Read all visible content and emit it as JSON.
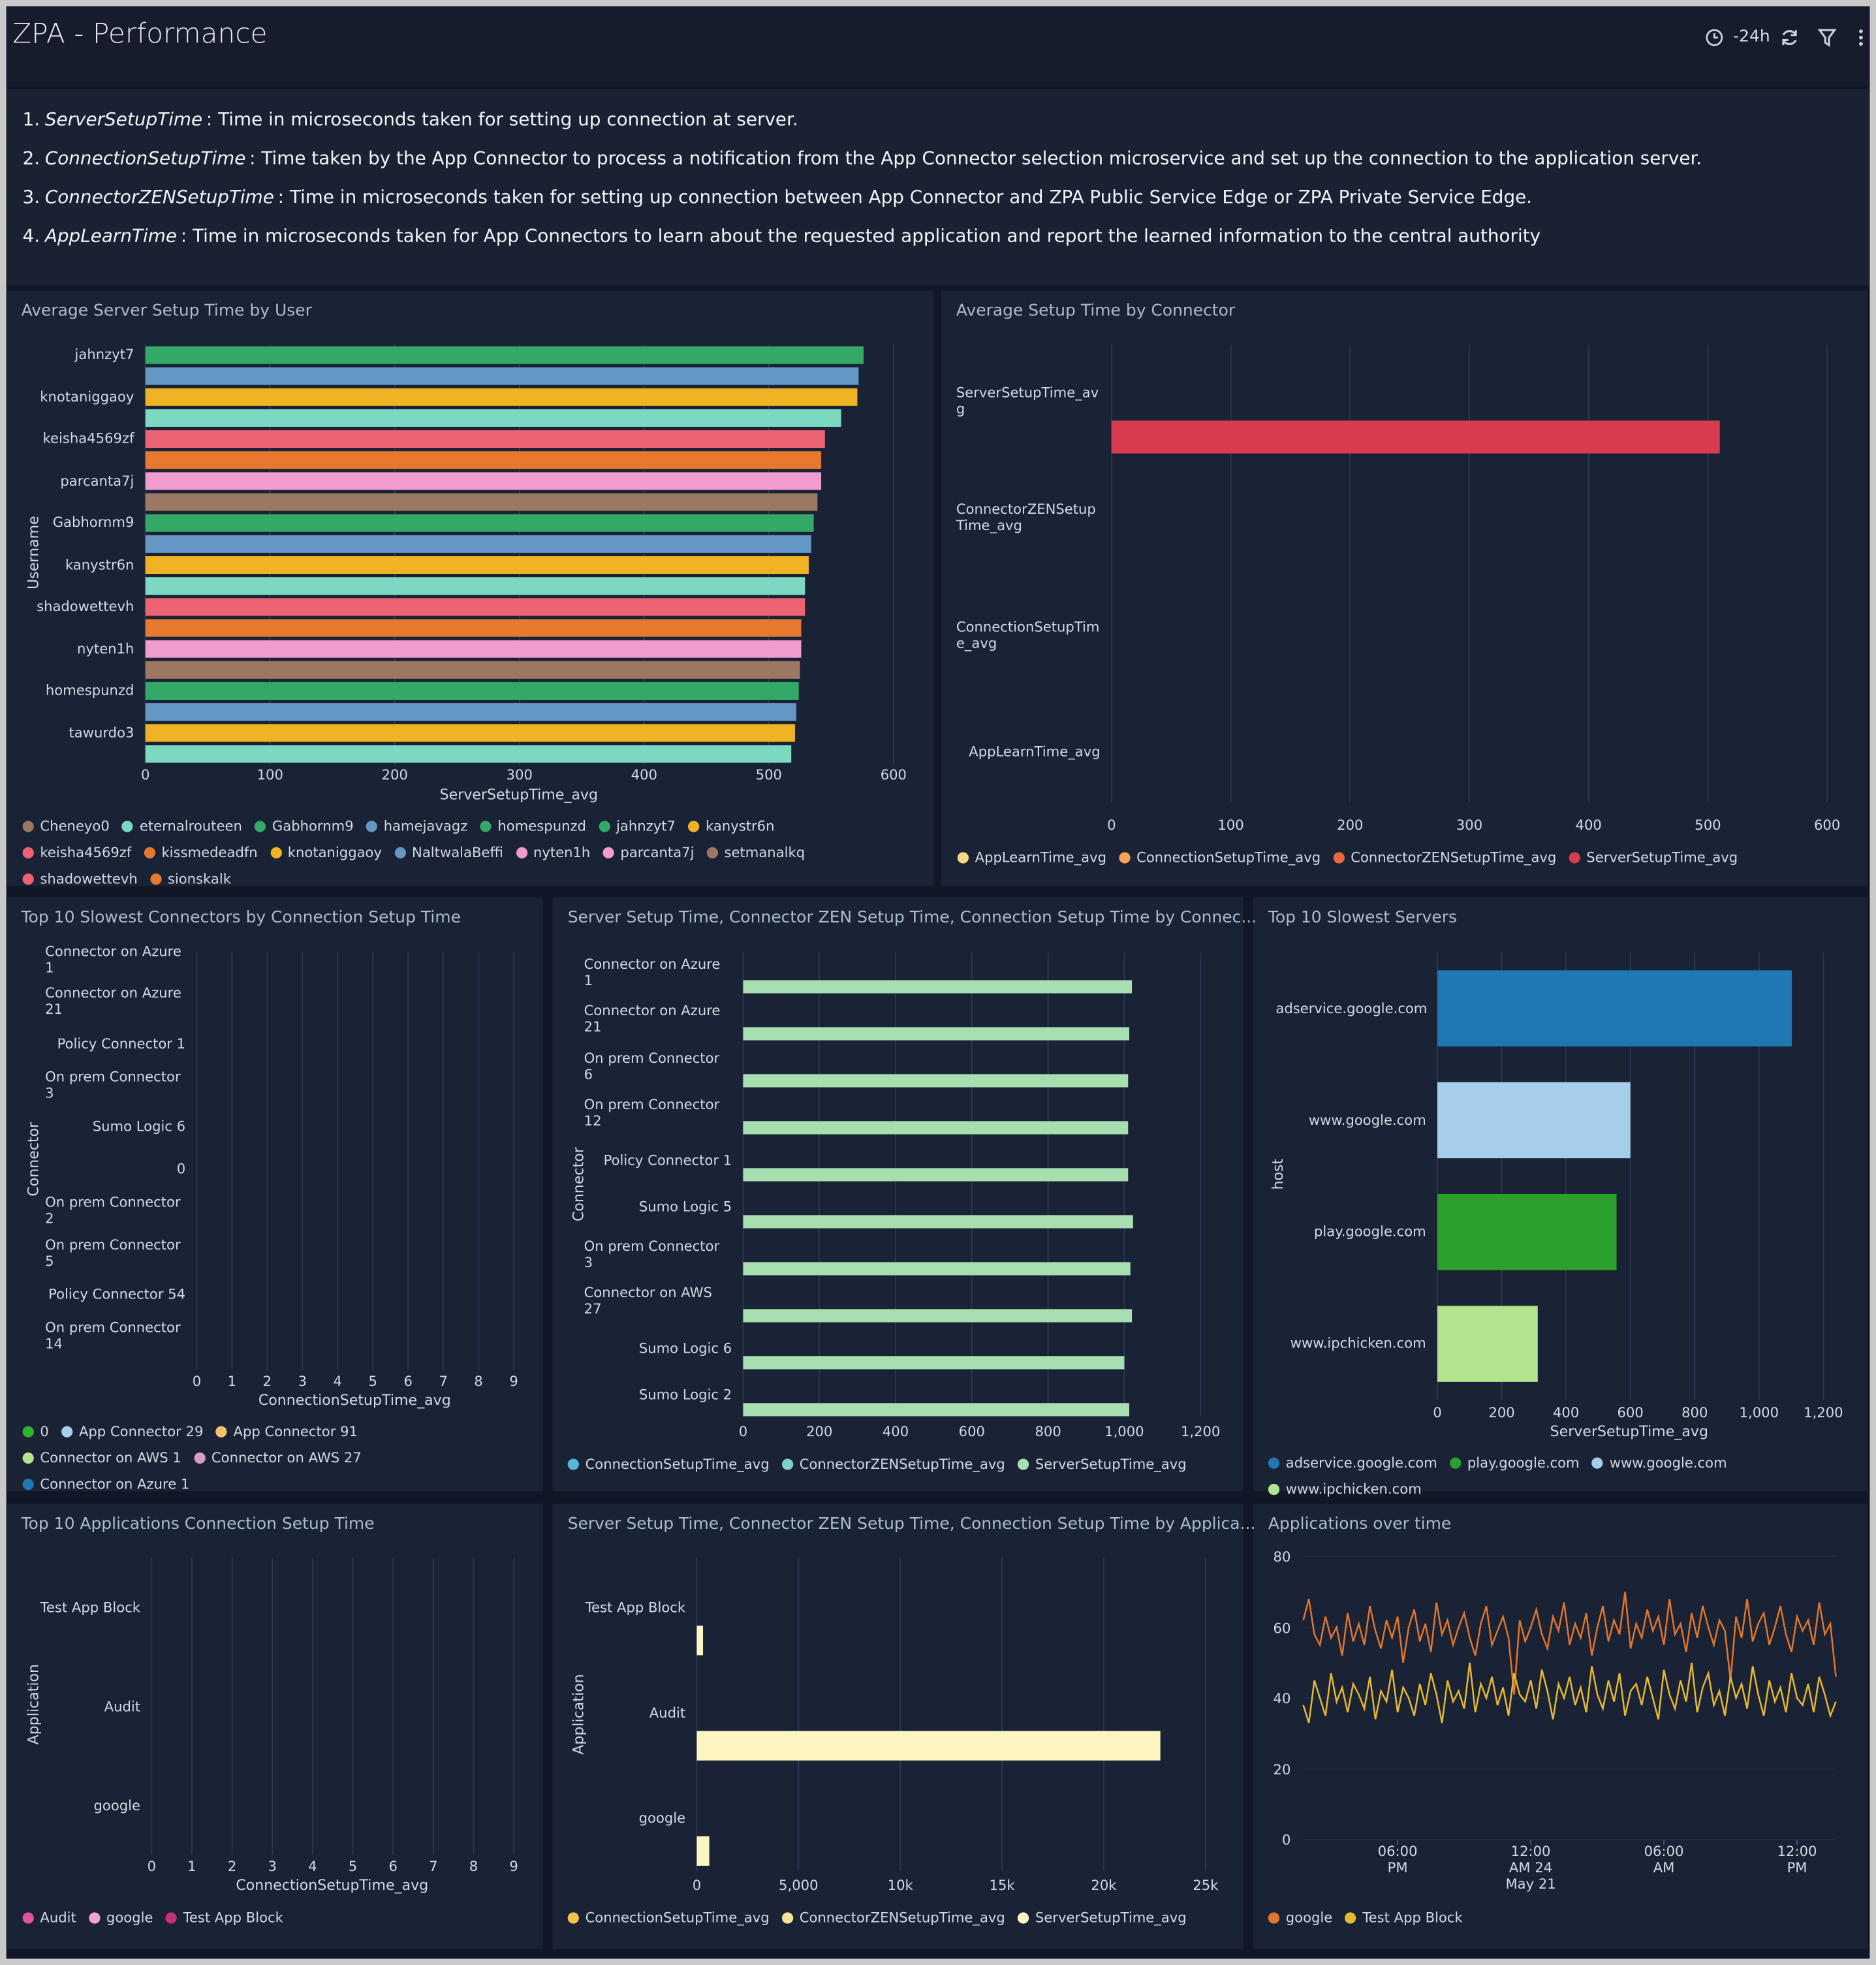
{
  "header": {
    "title": "ZPA - Performance",
    "time_range": "-24h"
  },
  "notes": [
    {
      "number": "1.",
      "term": "ServerSetupTime",
      "text": ": Time in microseconds taken for setting up connection at server."
    },
    {
      "number": "2.",
      "term": "ConnectionSetupTime",
      "text": ": Time taken by the App Connector to process a notification from the App Connector selection microservice and set up the connection to the application server."
    },
    {
      "number": "3.",
      "term": "ConnectorZENSetupTime",
      "text": ": Time in microseconds taken for setting up connection between App Connector and ZPA Public Service Edge or ZPA Private Service Edge."
    },
    {
      "number": "4.",
      "term": "AppLearnTime",
      "text": ": Time in microseconds taken for App Connectors to learn about the requested application and report the learned information to the central authority"
    }
  ],
  "chart_data": [
    {
      "type": "bar",
      "orientation": "horizontal",
      "title": "Average Server Setup Time by User",
      "x_label": "ServerSetupTime_avg",
      "y_label": "Username",
      "grid": true,
      "categories": [
        "jahnzyt7",
        null,
        "knotaniggaoy",
        null,
        "keisha4569zf",
        null,
        "parcanta7j",
        null,
        "Gabhornm9",
        null,
        "kanystr6n",
        null,
        "shadowettevh",
        null,
        "nyten1h",
        null,
        "homespunzd",
        null,
        "tawurdo3",
        null
      ],
      "values": [
        576,
        572,
        571,
        558,
        545,
        542,
        542,
        539,
        536,
        534,
        532,
        529,
        529,
        526,
        526,
        525,
        524,
        522,
        521,
        518
      ],
      "colors": [
        "#33a867",
        "#6497c4",
        "#f0b323",
        "#7dd8c1",
        "#ec6373",
        "#e6792f",
        "#f09cce",
        "#9c7863",
        "#33a867",
        "#6497c4",
        "#f0b323",
        "#7dd8c1",
        "#ec6373",
        "#e6792f",
        "#f09cce",
        "#9c7863",
        "#33a867",
        "#6497c4",
        "#f0b323",
        "#7dd8c1"
      ],
      "xlim": [
        0,
        600
      ],
      "xticks": [
        0,
        100,
        200,
        300,
        400,
        500,
        600
      ],
      "legend": [
        {
          "name": "Cheneyo0",
          "color": "#9c7863"
        },
        {
          "name": "eternalrouteen",
          "color": "#7dd8c1"
        },
        {
          "name": "Gabhornm9",
          "color": "#33a867"
        },
        {
          "name": "hamejavagz",
          "color": "#6497c4"
        },
        {
          "name": "homespunzd",
          "color": "#33a867"
        },
        {
          "name": "jahnzyt7",
          "color": "#33a867"
        },
        {
          "name": "kanystr6n",
          "color": "#f0b323"
        },
        {
          "name": "keisha4569zf",
          "color": "#ec6373"
        },
        {
          "name": "kissmedeadfn",
          "color": "#e6792f"
        },
        {
          "name": "knotaniggaoy",
          "color": "#f0b323"
        },
        {
          "name": "NaltwalaBeffi",
          "color": "#6497c4"
        },
        {
          "name": "nyten1h",
          "color": "#f09cce"
        },
        {
          "name": "parcanta7j",
          "color": "#f09cce"
        },
        {
          "name": "setmanalkq",
          "color": "#9c7863"
        },
        {
          "name": "shadowettevh",
          "color": "#ec6373"
        },
        {
          "name": "sionskalk",
          "color": "#e6792f"
        }
      ]
    },
    {
      "type": "bar",
      "orientation": "horizontal",
      "title": "Average Setup Time by Connector",
      "grid": true,
      "categories": [
        "ServerSetupTime_avg",
        "ConnectorZENSetupTime_avg",
        "ConnectionSetupTime_avg",
        "AppLearnTime_avg"
      ],
      "series": [
        {
          "name": "AppLearnTime_avg",
          "color": "#f3d983",
          "values": [
            null,
            null,
            null,
            null
          ]
        },
        {
          "name": "ConnectionSetupTime_avg",
          "color": "#f5a356",
          "values": [
            null,
            null,
            null,
            null
          ]
        },
        {
          "name": "ConnectorZENSetupTime_avg",
          "color": "#e8683f",
          "values": [
            null,
            null,
            null,
            null
          ]
        },
        {
          "name": "ServerSetupTime_avg",
          "color": "#d83d4f",
          "values": [
            510,
            null,
            null,
            null
          ]
        }
      ],
      "xlim": [
        0,
        600
      ],
      "xticks": [
        0,
        100,
        200,
        300,
        400,
        500,
        600
      ]
    },
    {
      "type": "bar",
      "orientation": "horizontal",
      "title": "Top 10 Slowest Connectors by Connection Setup Time",
      "x_label": "ConnectionSetupTime_avg",
      "y_label": "Connector",
      "grid": true,
      "categories": [
        "Connector on Azure 1",
        "Connector on Azure 21",
        "Policy Connector 1",
        "On prem Connector 3",
        "Sumo Logic 6",
        "0",
        "On prem Connector 2",
        "On prem Connector 5",
        "Policy Connector 54",
        "On prem Connector 14"
      ],
      "values": [
        0,
        0,
        0,
        0,
        0,
        0,
        0,
        0,
        0,
        0
      ],
      "xlim": [
        0,
        9
      ],
      "xticks": [
        0,
        1,
        2,
        3,
        4,
        5,
        6,
        7,
        8,
        9
      ],
      "legend": [
        {
          "name": "0",
          "color": "#2db52d"
        },
        {
          "name": "App Connector 29",
          "color": "#a6cdea"
        },
        {
          "name": "App Connector 91",
          "color": "#f5c06f"
        },
        {
          "name": "Connector on AWS 1",
          "color": "#b5e38f"
        },
        {
          "name": "Connector on AWS 27",
          "color": "#d69bc8"
        },
        {
          "name": "Connector on Azure 1",
          "color": "#1f77b4"
        }
      ]
    },
    {
      "type": "bar",
      "orientation": "horizontal",
      "title": "Server Setup Time, Connector ZEN Setup Time, Connection Setup Time by Connec...",
      "y_label": "Connector",
      "grid": true,
      "categories": [
        "Connector on Azure 1",
        "Connector on Azure 21",
        "On prem Connector 6",
        "On prem Connector 12",
        "Policy Connector 1",
        "Sumo Logic 5",
        "On prem Connector 3",
        "Connector on AWS 27",
        "Sumo Logic 6",
        "Sumo Logic 2"
      ],
      "series": [
        {
          "name": "ConnectionSetupTime_avg",
          "color": "#58b4d9",
          "values": [
            null,
            null,
            null,
            null,
            null,
            null,
            null,
            null,
            null,
            null
          ]
        },
        {
          "name": "ConnectorZENSetupTime_avg",
          "color": "#7fd3c4",
          "values": [
            null,
            null,
            null,
            null,
            null,
            null,
            null,
            null,
            null,
            null
          ]
        },
        {
          "name": "ServerSetupTime_avg",
          "color": "#a8dfb0",
          "values": [
            1020,
            1013,
            1010,
            1010,
            1010,
            1023,
            1016,
            1020,
            1000,
            1013
          ]
        }
      ],
      "xlim": [
        0,
        1200
      ],
      "xticks": [
        0,
        200,
        400,
        600,
        800,
        {
          "value": 1000,
          "label": "1,000"
        },
        {
          "value": 1200,
          "label": "1,200"
        }
      ]
    },
    {
      "type": "bar",
      "orientation": "horizontal",
      "title": "Top 10 Slowest Servers",
      "x_label": "ServerSetupTime_avg",
      "y_label": "host",
      "grid": true,
      "categories": [
        "adservice.google.com",
        "www.google.com",
        "play.google.com",
        "www.ipchicken.com"
      ],
      "values": [
        1102,
        600,
        557,
        312
      ],
      "colors": [
        "#1f77b4",
        "#a6cdea",
        "#2ca02c",
        "#b4e38d"
      ],
      "xlim": [
        0,
        1200
      ],
      "xticks": [
        0,
        200,
        400,
        600,
        800,
        {
          "value": 1000,
          "label": "1,000"
        },
        {
          "value": 1200,
          "label": "1,200"
        }
      ],
      "legend": [
        {
          "name": "adservice.google.com",
          "color": "#1f77b4"
        },
        {
          "name": "play.google.com",
          "color": "#2ca02c"
        },
        {
          "name": "www.google.com",
          "color": "#a6cdea"
        },
        {
          "name": "www.ipchicken.com",
          "color": "#b4e38d"
        }
      ]
    },
    {
      "type": "bar",
      "orientation": "horizontal",
      "title": "Top 10 Applications Connection Setup Time",
      "x_label": "ConnectionSetupTime_avg",
      "y_label": "Application",
      "grid": true,
      "categories": [
        "Test App Block",
        "Audit",
        "google"
      ],
      "values": [
        0,
        0,
        0
      ],
      "xlim": [
        0,
        9
      ],
      "xticks": [
        0,
        1,
        2,
        3,
        4,
        5,
        6,
        7,
        8,
        9
      ],
      "legend": [
        {
          "name": "Audit",
          "color": "#e0559e"
        },
        {
          "name": "google",
          "color": "#f2a5cf"
        },
        {
          "name": "Test App Block",
          "color": "#c2307a"
        }
      ]
    },
    {
      "type": "bar",
      "orientation": "horizontal",
      "title": "Server Setup Time, Connector ZEN Setup Time, Connection Setup Time by Applica...",
      "y_label": "Application",
      "grid": true,
      "categories": [
        "Test App Block",
        "Audit",
        "google"
      ],
      "series": [
        {
          "name": "ConnectionSetupTime_avg",
          "color": "#f0c24a",
          "values": [
            null,
            null,
            null
          ]
        },
        {
          "name": "ConnectorZENSetupTime_avg",
          "color": "#f5e39a",
          "values": [
            null,
            null,
            null
          ]
        },
        {
          "name": "ServerSetupTime_avg",
          "color": "#fdf6c3",
          "values": [
            308,
            22780,
            616
          ]
        }
      ],
      "xlim": [
        0,
        25000
      ],
      "xticks": [
        0,
        {
          "value": 5000,
          "label": "5,000"
        },
        {
          "value": 10000,
          "label": "10k"
        },
        {
          "value": 15000,
          "label": "15k"
        },
        {
          "value": 20000,
          "label": "20k"
        },
        {
          "value": 25000,
          "label": "25k"
        }
      ]
    },
    {
      "type": "line",
      "title": "Applications over time",
      "grid": true,
      "x": [
        0,
        0.25,
        0.5,
        0.75,
        1,
        1.25,
        1.5,
        1.75,
        2,
        2.25,
        2.5,
        2.75,
        3,
        3.25,
        3.5,
        3.75,
        4,
        4.25,
        4.5,
        4.75,
        5,
        5.25,
        5.5,
        5.75,
        6,
        6.25,
        6.5,
        6.75,
        7,
        7.25,
        7.5,
        7.75,
        8,
        8.25,
        8.5,
        8.75,
        9,
        9.25,
        9.5,
        9.75,
        10,
        10.25,
        10.5,
        10.75,
        11,
        11.25,
        11.5,
        11.75,
        12,
        12.25,
        12.5,
        12.75,
        13,
        13.25,
        13.5,
        13.75,
        14,
        14.25,
        14.5,
        14.75,
        15,
        15.25,
        15.5,
        15.75,
        16,
        16.25,
        16.5,
        16.75,
        17,
        17.25,
        17.5,
        17.75,
        18,
        18.25,
        18.5,
        18.75,
        19,
        19.25,
        19.5,
        19.75,
        20,
        20.25,
        20.5,
        20.75,
        21,
        21.25,
        21.5,
        21.75,
        22,
        22.25,
        22.5,
        22.75,
        23,
        23.25,
        23.5,
        23.75,
        24
      ],
      "series": [
        {
          "name": "google",
          "color": "#e2762b",
          "values": [
            62,
            68,
            58,
            55,
            63,
            57,
            60,
            52,
            64,
            56,
            61,
            55,
            66,
            59,
            54,
            62,
            57,
            63,
            50,
            60,
            65,
            56,
            61,
            53,
            67,
            58,
            62,
            55,
            60,
            64,
            57,
            52,
            61,
            66,
            55,
            59,
            63,
            57,
            41,
            62,
            56,
            60,
            65,
            58,
            54,
            63,
            59,
            67,
            55,
            61,
            57,
            64,
            52,
            60,
            66,
            56,
            62,
            58,
            70,
            54,
            61,
            57,
            65,
            59,
            63,
            55,
            68,
            58,
            61,
            53,
            64,
            57,
            66,
            60,
            55,
            62,
            59,
            45,
            63,
            57,
            68,
            56,
            61,
            64,
            55,
            60,
            66,
            58,
            53,
            63,
            59,
            62,
            55,
            67,
            58,
            61,
            46
          ]
        },
        {
          "name": "Test App Block",
          "color": "#e7b92c",
          "values": [
            38,
            33,
            45,
            40,
            35,
            47,
            39,
            43,
            36,
            44,
            41,
            37,
            46,
            34,
            42,
            39,
            48,
            36,
            43,
            40,
            35,
            44,
            38,
            47,
            41,
            33,
            45,
            39,
            42,
            37,
            50,
            36,
            44,
            40,
            46,
            38,
            43,
            35,
            47,
            41,
            39,
            45,
            37,
            48,
            42,
            34,
            44,
            40,
            46,
            38,
            43,
            36,
            49,
            41,
            37,
            45,
            39,
            47,
            35,
            42,
            44,
            38,
            46,
            40,
            34,
            48,
            41,
            37,
            45,
            39,
            50,
            36,
            43,
            47,
            38,
            42,
            35,
            46,
            40,
            44,
            37,
            49,
            41,
            35,
            45,
            39,
            43,
            36,
            47,
            40,
            38,
            44,
            36,
            46,
            41,
            35,
            39
          ]
        }
      ],
      "xlim": [
        0,
        24
      ],
      "xticks": [
        {
          "value": 4.25,
          "label": "06:00 PM"
        },
        {
          "value": 10.25,
          "label": "12:00 AM 24 May 21"
        },
        {
          "value": 16.25,
          "label": "06:00 AM"
        },
        {
          "value": 22.25,
          "label": "12:00 PM"
        }
      ],
      "ylim": [
        0,
        80
      ],
      "yticks": [
        0,
        20,
        40,
        60,
        80
      ]
    }
  ]
}
